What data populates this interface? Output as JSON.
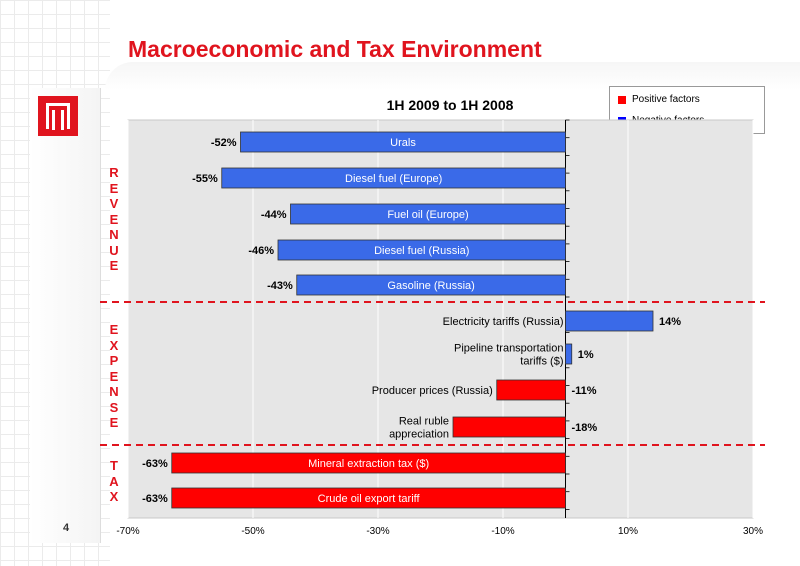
{
  "slide": {
    "title": "Macroeconomic and Tax Environment",
    "page_number": "4",
    "section_labels": [
      {
        "text": "REVENUE"
      },
      {
        "text": "EXPENSE"
      },
      {
        "text": "TAX"
      }
    ]
  },
  "legend": {
    "items": [
      {
        "label": "Positive factors",
        "color": "#ff0000"
      },
      {
        "label": "Negative factors",
        "color": "#0000ff"
      }
    ]
  },
  "colors": {
    "title": "#e0141e",
    "negative_bar": "#3a6ae8",
    "positive_bar": "#ff0000",
    "divider": "#e0141e",
    "plot_bg": "#e6e6e6"
  },
  "chart_data": {
    "type": "bar",
    "orientation": "horizontal",
    "title": "1H 2009 to 1H 2008",
    "xlim": [
      -70,
      30
    ],
    "xticks": [
      "-70%",
      "-50%",
      "-30%",
      "-10%",
      "10%",
      "30%"
    ],
    "xtick_values": [
      -70,
      -50,
      -30,
      -10,
      10,
      30
    ],
    "grid": true,
    "legend_position": "top-right",
    "bars": [
      {
        "label": "Urals",
        "value": -52,
        "value_label": "-52%",
        "factor": "Negative factors",
        "section": "REVENUE",
        "label_inside": true
      },
      {
        "label": "Diesel fuel (Europe)",
        "value": -55,
        "value_label": "-55%",
        "factor": "Negative factors",
        "section": "REVENUE",
        "label_inside": true
      },
      {
        "label": "Fuel oil (Europe)",
        "value": -44,
        "value_label": "-44%",
        "factor": "Negative factors",
        "section": "REVENUE",
        "label_inside": true
      },
      {
        "label": "Diesel fuel (Russia)",
        "value": -46,
        "value_label": "-46%",
        "factor": "Negative factors",
        "section": "REVENUE",
        "label_inside": true
      },
      {
        "label": "Gasoline (Russia)",
        "value": -43,
        "value_label": "-43%",
        "factor": "Negative factors",
        "section": "REVENUE",
        "label_inside": true
      },
      {
        "label": "Electricity tariffs (Russia)",
        "value": 14,
        "value_label": "14%",
        "factor": "Negative factors",
        "section": "EXPENSE",
        "label_inside": false
      },
      {
        "label": "Pipeline transportation\ntariffs ($)",
        "value": 1,
        "value_label": "1%",
        "factor": "Negative factors",
        "section": "EXPENSE",
        "label_inside": false
      },
      {
        "label": "Producer prices (Russia)",
        "value": -11,
        "value_label": "-11%",
        "factor": "Positive factors",
        "section": "EXPENSE",
        "label_inside": false
      },
      {
        "label": "Real ruble\nappreciation",
        "value": -18,
        "value_label": "-18%",
        "factor": "Positive factors",
        "section": "EXPENSE",
        "label_inside": false
      },
      {
        "label": "Mineral extraction tax ($)",
        "value": -63,
        "value_label": "-63%",
        "factor": "Positive factors",
        "section": "TAX",
        "label_inside": true
      },
      {
        "label": "Crude oil export tariff",
        "value": -63,
        "value_label": "-63%",
        "factor": "Positive factors",
        "section": "TAX",
        "label_inside": true
      }
    ]
  }
}
